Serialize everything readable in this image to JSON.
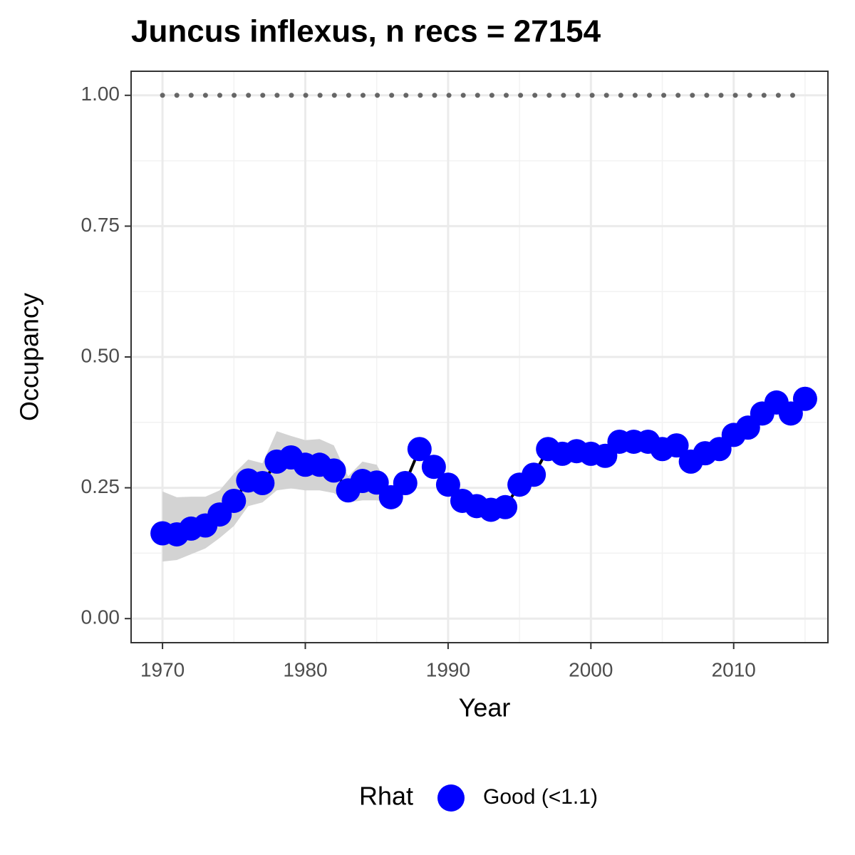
{
  "chart_data": {
    "type": "line",
    "title": "Juncus inflexus, n recs = 27154",
    "x_label": "Year",
    "y_label": "Occupancy",
    "x": [
      1970,
      1971,
      1972,
      1973,
      1974,
      1975,
      1976,
      1977,
      1978,
      1979,
      1980,
      1981,
      1982,
      1983,
      1984,
      1985,
      1986,
      1987,
      1988,
      1989,
      1990,
      1991,
      1992,
      1993,
      1994,
      1995,
      1996,
      1997,
      1998,
      1999,
      2000,
      2001,
      2002,
      2003,
      2004,
      2005,
      2006,
      2007,
      2008,
      2009,
      2010,
      2011,
      2012,
      2013,
      2014,
      2015
    ],
    "series": [
      {
        "name": "Good (<1.1)",
        "color": "#0000ff",
        "line_color": "#000000",
        "values": [
          0.163,
          0.161,
          0.172,
          0.178,
          0.199,
          0.225,
          0.264,
          0.259,
          0.3,
          0.308,
          0.294,
          0.294,
          0.283,
          0.245,
          0.263,
          0.26,
          0.232,
          0.259,
          0.324,
          0.29,
          0.256,
          0.225,
          0.215,
          0.208,
          0.213,
          0.256,
          0.275,
          0.324,
          0.315,
          0.32,
          0.315,
          0.311,
          0.338,
          0.338,
          0.338,
          0.324,
          0.331,
          0.3,
          0.316,
          0.324,
          0.351,
          0.365,
          0.392,
          0.413,
          0.392,
          0.42
        ]
      }
    ],
    "ribbon": {
      "color": "#d3d3d3",
      "upper": [
        0.243,
        0.232,
        0.233,
        0.233,
        0.245,
        0.277,
        0.304,
        0.297,
        0.358,
        0.349,
        0.341,
        0.343,
        0.331,
        0.272,
        0.3,
        0.294,
        0.243,
        0.283,
        null,
        null,
        null,
        null,
        null,
        null,
        null,
        null,
        null,
        null,
        null,
        null,
        null,
        null,
        null,
        null,
        null,
        null,
        null,
        null,
        null,
        null,
        null,
        null,
        null,
        null,
        null,
        null
      ],
      "lower": [
        0.109,
        0.112,
        0.123,
        0.134,
        0.154,
        0.177,
        0.215,
        0.222,
        0.245,
        0.249,
        0.245,
        0.245,
        0.24,
        0.222,
        0.226,
        0.226,
        0.222,
        0.243,
        null,
        null,
        null,
        null,
        null,
        null,
        null,
        null,
        null,
        null,
        null,
        null,
        null,
        null,
        null,
        null,
        null,
        null,
        null,
        null,
        null,
        null,
        null,
        null,
        null,
        null,
        null,
        null
      ]
    },
    "reference_line": 1,
    "reference_color": "#666666",
    "legend_title": "Rhat",
    "legend": "bottom",
    "xlim": [
      1967.8,
      2016.6
    ],
    "ylim": [
      -0.046,
      1.046
    ],
    "xticks": [
      1970,
      1980,
      1990,
      2000,
      2010
    ],
    "yticks": [
      {
        "value": 0,
        "label": "0.00"
      },
      {
        "value": 0.25,
        "label": "0.25"
      },
      {
        "value": 0.5,
        "label": "0.50"
      },
      {
        "value": 0.75,
        "label": "0.75"
      },
      {
        "value": 1,
        "label": "1.00"
      }
    ],
    "xminor": [
      1975,
      1985,
      1995,
      2005,
      2015
    ],
    "yminor": [
      0.125,
      0.375,
      0.625,
      0.875
    ],
    "grid": true
  }
}
